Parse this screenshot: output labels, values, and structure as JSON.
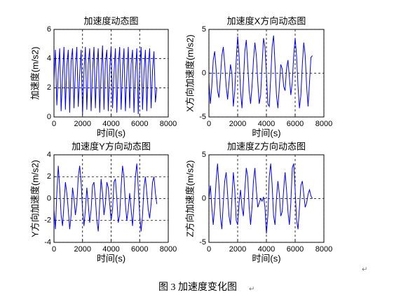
{
  "chart_data": [
    {
      "type": "line",
      "title": "加速度动态图",
      "x_label": "时间(s)",
      "y_label": "加速度(m/s2)",
      "color": "#0000ff",
      "grid": true,
      "xlim": [
        0,
        8000
      ],
      "xticks": [
        0,
        2000,
        4000,
        6000,
        8000
      ],
      "ylim": [
        0,
        6
      ],
      "yticks": [
        0,
        2,
        4,
        6
      ],
      "x": [
        0,
        100,
        200,
        300,
        400,
        500,
        600,
        700,
        800,
        900,
        1000,
        1100,
        1200,
        1300,
        1400,
        1500,
        1600,
        1700,
        1800,
        1900,
        2000,
        2100,
        2200,
        2300,
        2400,
        2500,
        2600,
        2700,
        2800,
        2900,
        3000,
        3100,
        3200,
        3300,
        3400,
        3500,
        3600,
        3700,
        3800,
        3900,
        4000,
        4100,
        4200,
        4300,
        4400,
        4500,
        4600,
        4700,
        4800,
        4900,
        5000,
        5100,
        5200,
        5300,
        5400,
        5500,
        5600,
        5700,
        5800,
        5900,
        6000,
        6100,
        6200,
        6300,
        6400,
        6500,
        6600,
        6700,
        6800,
        6900,
        7000,
        7100,
        7200
      ],
      "values": [
        2.5,
        4.6,
        0.8,
        3.0,
        4.7,
        0.4,
        2.8,
        4.8,
        0.5,
        3.5,
        4.6,
        0.3,
        3.8,
        4.7,
        0.6,
        3.3,
        4.8,
        0.7,
        2.9,
        4.6,
        0.2,
        3.1,
        4.8,
        0.5,
        3.6,
        4.7,
        0.4,
        3.2,
        4.8,
        0.6,
        3.4,
        4.7,
        0.3,
        3.0,
        4.9,
        0.5,
        3.7,
        4.6,
        0.4,
        3.3,
        4.8,
        0.6,
        3.0,
        4.7,
        0.3,
        3.5,
        4.8,
        0.5,
        3.2,
        4.7,
        0.4,
        2.9,
        4.8,
        0.6,
        3.6,
        4.6,
        0.3,
        3.1,
        4.7,
        0.2,
        3.3,
        4.8,
        0.5,
        3.0,
        4.6,
        0.4,
        3.4,
        4.7,
        0.6,
        3.2,
        4.5,
        1.0,
        2.0
      ]
    },
    {
      "type": "line",
      "title": "加速度X方向动态图",
      "x_label": "时间(s)",
      "y_label": "X方向加速度(m/s2)",
      "color": "#0000ff",
      "grid": true,
      "xlim": [
        0,
        8000
      ],
      "xticks": [
        0,
        2000,
        4000,
        6000,
        8000
      ],
      "ylim": [
        -5,
        5
      ],
      "yticks": [
        -5,
        0,
        5
      ],
      "x": [
        0,
        100,
        200,
        300,
        400,
        500,
        600,
        700,
        800,
        900,
        1000,
        1100,
        1200,
        1300,
        1400,
        1500,
        1600,
        1700,
        1800,
        1900,
        2000,
        2100,
        2200,
        2300,
        2400,
        2500,
        2600,
        2700,
        2800,
        2900,
        3000,
        3100,
        3200,
        3300,
        3400,
        3500,
        3600,
        3700,
        3800,
        3900,
        4000,
        4100,
        4200,
        4300,
        4400,
        4500,
        4600,
        4700,
        4800,
        4900,
        5000,
        5100,
        5200,
        5300,
        5400,
        5500,
        5600,
        5700,
        5800,
        5900,
        6000,
        6100,
        6200,
        6300,
        6400,
        6500,
        6600,
        6700,
        6800,
        6900,
        7000,
        7100,
        7200
      ],
      "values": [
        -1,
        -3.5,
        -1.5,
        1.5,
        2.5,
        0.5,
        -2,
        -2.8,
        -0.5,
        2,
        3,
        1,
        -1.5,
        -3,
        -1,
        1,
        0,
        -3.8,
        -2,
        1.5,
        4.2,
        2,
        -2,
        -4,
        -1,
        2.5,
        3.8,
        1,
        -2,
        -3.5,
        -1.5,
        1.5,
        3.5,
        2,
        -1,
        -3.5,
        -2.5,
        1,
        4,
        3,
        0,
        -3.5,
        -3.8,
        -0.5,
        3,
        4.3,
        1,
        -2.5,
        -4,
        -1.5,
        1,
        0.5,
        -1.5,
        -2,
        0.5,
        1.5,
        -0.5,
        -2.5,
        -1,
        2,
        4,
        2,
        -1.5,
        -4,
        -2.5,
        1,
        3.5,
        2,
        -1.5,
        -3.8,
        -1,
        1.8,
        2
      ]
    },
    {
      "type": "line",
      "title": "加速度Y方向动态图",
      "x_label": "时间(s)",
      "y_label": "Y方向加速度(m/s2)",
      "color": "#0000ff",
      "grid": true,
      "xlim": [
        0,
        8000
      ],
      "xticks": [
        0,
        2000,
        4000,
        6000,
        8000
      ],
      "ylim": [
        -4,
        4
      ],
      "yticks": [
        -4,
        -2,
        0,
        2,
        4
      ],
      "x": [
        0,
        100,
        200,
        300,
        400,
        500,
        600,
        700,
        800,
        900,
        1000,
        1100,
        1200,
        1300,
        1400,
        1500,
        1600,
        1700,
        1800,
        1900,
        2000,
        2100,
        2200,
        2300,
        2400,
        2500,
        2600,
        2700,
        2800,
        2900,
        3000,
        3100,
        3200,
        3300,
        3400,
        3500,
        3600,
        3700,
        3800,
        3900,
        4000,
        4100,
        4200,
        4300,
        4400,
        4500,
        4600,
        4700,
        4800,
        4900,
        5000,
        5100,
        5200,
        5300,
        5400,
        5500,
        5600,
        5700,
        5800,
        5900,
        6000,
        6100,
        6200,
        6300,
        6400,
        6500,
        6600,
        6700,
        6800,
        6900,
        7000,
        7100,
        7200
      ],
      "values": [
        -1,
        -2.8,
        0.5,
        3,
        1,
        -1.5,
        -2.5,
        -0.5,
        1.5,
        0.5,
        -1,
        -2.8,
        -1.5,
        1,
        0,
        -1.5,
        -0.5,
        2,
        3,
        1.5,
        -1,
        -2.5,
        -1,
        1,
        -0.5,
        -2.2,
        -1,
        1.2,
        1.5,
        0,
        -2,
        -3,
        -0.5,
        1.8,
        0.5,
        -1.5,
        -0.5,
        1.5,
        1,
        -0.5,
        -2,
        -1,
        1.5,
        1.8,
        0,
        -2.2,
        -1.5,
        1,
        3,
        2,
        -0.5,
        -2,
        -1,
        0.5,
        -1,
        -2.5,
        -0.5,
        2,
        3.2,
        1,
        -1.5,
        -3,
        -1.5,
        1,
        2,
        0.5,
        -1,
        -1.8,
        -0.5,
        1.5,
        2,
        0.5,
        -0.5
      ]
    },
    {
      "type": "line",
      "title": "加速度Z方向动态图",
      "x_label": "时间(s)",
      "y_label": "Z方向加速度(m/s2)",
      "color": "#0000ff",
      "grid": true,
      "xlim": [
        0,
        8000
      ],
      "xticks": [
        0,
        2000,
        4000,
        6000,
        8000
      ],
      "ylim": [
        -5,
        5
      ],
      "yticks": [
        -5,
        0,
        5
      ],
      "x": [
        0,
        100,
        200,
        300,
        400,
        500,
        600,
        700,
        800,
        900,
        1000,
        1100,
        1200,
        1300,
        1400,
        1500,
        1600,
        1700,
        1800,
        1900,
        2000,
        2100,
        2200,
        2300,
        2400,
        2500,
        2600,
        2700,
        2800,
        2900,
        3000,
        3100,
        3200,
        3300,
        3400,
        3500,
        3600,
        3700,
        3800,
        3900,
        4000,
        4100,
        4200,
        4300,
        4400,
        4500,
        4600,
        4700,
        4800,
        4900,
        5000,
        5100,
        5200,
        5300,
        5400,
        5500,
        5600,
        5700,
        5800,
        5900,
        6000,
        6100,
        6200,
        6300,
        6400,
        6500,
        6600,
        6700,
        6800,
        6900,
        7000,
        7100,
        7200
      ],
      "values": [
        0,
        1.5,
        -1,
        -3,
        -1,
        2,
        4,
        1.5,
        -2,
        -3.5,
        -0.5,
        2,
        3,
        0.5,
        -2,
        -3,
        0,
        3,
        1,
        -2.5,
        -3,
        -0.5,
        1,
        -1,
        -2,
        1,
        3.5,
        2.5,
        -1,
        -3,
        -1,
        2,
        3.5,
        1,
        -1,
        -0.5,
        0,
        -0.3,
        0.2,
        -1,
        -4,
        -2,
        2.5,
        4,
        1.5,
        -2,
        -3,
        0,
        2,
        0.5,
        -2,
        -1.5,
        1,
        3,
        1,
        -1.5,
        -3,
        -0.5,
        3.5,
        4,
        1,
        -2.5,
        -3.5,
        -1,
        1.5,
        2,
        0.5,
        -1,
        -0.5,
        0.5,
        1,
        0.3,
        0
      ]
    }
  ],
  "caption": "图 3  加速度变化图",
  "paragraph_mark": "↵"
}
